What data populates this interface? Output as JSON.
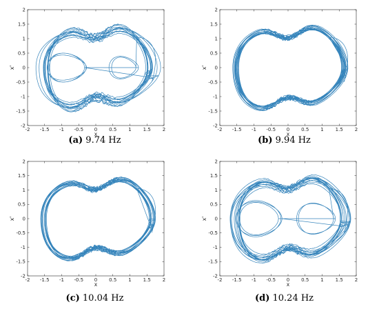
{
  "chart_data": [
    {
      "type": "line",
      "caption_letter": "(a)",
      "caption_text": "9.74 Hz",
      "xlabel": "x",
      "ylabel": "x'",
      "xlim": [
        -2,
        2
      ],
      "ylim": [
        -2,
        2
      ],
      "xticks": [
        "-2",
        "-1.5",
        "-1",
        "-0.5",
        "0",
        "0.5",
        "1",
        "1.5",
        "2"
      ],
      "yticks": [
        "-2",
        "-1.5",
        "-1",
        "-0.5",
        "0",
        "0.5",
        "1",
        "1.5",
        "2"
      ],
      "grid": false,
      "color": "#1f77b4",
      "orbit": {
        "outer_loops": 13,
        "outer_spread": 0.35,
        "inner_left": true,
        "inner_right": true,
        "inner_strength": 0.8,
        "transient": true,
        "seed": 3
      }
    },
    {
      "type": "line",
      "caption_letter": "(b)",
      "caption_text": "9.94 Hz",
      "xlabel": "x",
      "ylabel": "x'",
      "xlim": [
        -2,
        2
      ],
      "ylim": [
        -2,
        2
      ],
      "xticks": [
        "-2",
        "-1.5",
        "-1",
        "-0.5",
        "0",
        "0.5",
        "1",
        "1.5",
        "2"
      ],
      "yticks": [
        "-2",
        "-1.5",
        "-1",
        "-0.5",
        "0",
        "0.5",
        "1",
        "1.5",
        "2"
      ],
      "grid": false,
      "color": "#1f77b4",
      "orbit": {
        "outer_loops": 16,
        "outer_spread": 0.16,
        "inner_left": false,
        "inner_right": false,
        "inner_strength": 0,
        "transient": true,
        "seed": 7
      }
    },
    {
      "type": "line",
      "caption_letter": "(c)",
      "caption_text": "10.04 Hz",
      "xlabel": "x",
      "ylabel": "x'",
      "xlim": [
        -2,
        2
      ],
      "ylim": [
        -2,
        2
      ],
      "xticks": [
        "-2",
        "-1.5",
        "-1",
        "-0.5",
        "0",
        "0.5",
        "1",
        "1.5",
        "2"
      ],
      "yticks": [
        "-2",
        "-1.5",
        "-1",
        "-0.5",
        "0",
        "0.5",
        "1",
        "1.5",
        "2"
      ],
      "grid": false,
      "color": "#1f77b4",
      "orbit": {
        "outer_loops": 16,
        "outer_spread": 0.14,
        "inner_left": false,
        "inner_right": false,
        "inner_strength": 0,
        "transient": true,
        "seed": 11
      }
    },
    {
      "type": "line",
      "caption_letter": "(d)",
      "caption_text": "10.24 Hz",
      "xlabel": "x",
      "ylabel": "x'",
      "xlim": [
        -2,
        2
      ],
      "ylim": [
        -2,
        2
      ],
      "xticks": [
        "-2",
        "-1.5",
        "-1",
        "-0.5",
        "0",
        "0.5",
        "1",
        "1.5",
        "2"
      ],
      "yticks": [
        "-2",
        "-1.5",
        "-1",
        "-0.5",
        "0",
        "0.5",
        "1",
        "1.5",
        "2"
      ],
      "grid": false,
      "color": "#1f77b4",
      "orbit": {
        "outer_loops": 14,
        "outer_spread": 0.28,
        "inner_left": true,
        "inner_right": true,
        "inner_strength": 1.0,
        "transient": true,
        "seed": 5
      }
    }
  ]
}
